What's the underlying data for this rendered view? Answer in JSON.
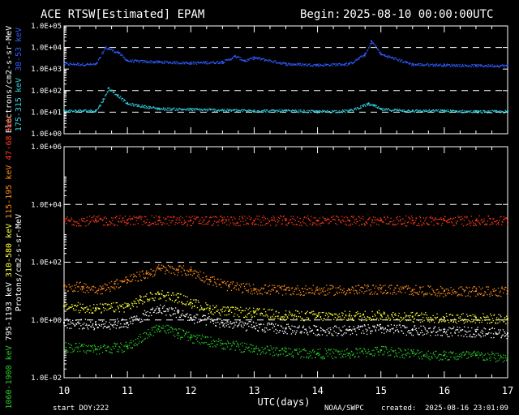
{
  "header": {
    "title": "ACE RTSW[Estimated] EPAM",
    "begin_label": "Begin:",
    "begin_value": "2025-08-10 00:00:00UTC"
  },
  "footer": {
    "start_doy_label": "start DOY:",
    "start_doy_value": "222",
    "source": "NOAA/SWPC",
    "created_label": "created:",
    "created_value": "2025-08-16 23:01:09"
  },
  "colors": {
    "background": "#000000",
    "axes": "#ffffff",
    "grid": "#ffffff",
    "electrons_38_53": "#2f5cff",
    "electrons_175_315": "#34d0e0",
    "protons_47_68": "#ff3a1a",
    "protons_115_195": "#ff8c1a",
    "protons_310_580": "#ffff33",
    "protons_795_1193": "#ffffff",
    "protons_1060_1900": "#28c828"
  },
  "chart_data": [
    {
      "type": "scatter",
      "panel": "electrons",
      "ylabel_parts": [
        {
          "text": "Electrons/cm2-s-sr-MeV",
          "color": "#ffffff"
        },
        {
          "text": "175-315 keV",
          "color": "#34d0e0"
        },
        {
          "text": "38-53 keV",
          "color": "#2f5cff"
        }
      ],
      "yscale": "log",
      "ylim": [
        1,
        100000
      ],
      "yticks": [
        "1.0E+00",
        "1.0E+01",
        "1.0E+02",
        "1.0E+03",
        "1.0E+04",
        "1.0E+05"
      ],
      "grid_dashed_at": [
        10000,
        100,
        10
      ],
      "xlim": [
        10,
        17
      ],
      "series": [
        {
          "name": "38-53 keV",
          "color": "#2f5cff",
          "x": [
            10.0,
            10.5,
            10.65,
            10.7,
            10.85,
            11.0,
            11.5,
            12.0,
            12.5,
            12.7,
            12.85,
            13.0,
            13.5,
            14.0,
            14.5,
            14.75,
            14.85,
            15.0,
            15.5,
            16.0,
            16.5,
            17.0
          ],
          "y": [
            1800,
            1700,
            10000,
            9000,
            6000,
            2500,
            2200,
            2000,
            2200,
            4000,
            2500,
            3500,
            1800,
            1600,
            1800,
            5000,
            20000,
            5000,
            1700,
            1600,
            1500,
            1500
          ]
        },
        {
          "name": "175-315 keV",
          "color": "#34d0e0",
          "x": [
            10.0,
            10.5,
            10.62,
            10.7,
            10.85,
            11.0,
            11.5,
            12.0,
            12.5,
            13.0,
            13.5,
            14.0,
            14.5,
            14.8,
            14.9,
            15.0,
            15.5,
            16.0,
            16.5,
            17.0
          ],
          "y": [
            12,
            12,
            40,
            130,
            60,
            25,
            15,
            14,
            13,
            12,
            12,
            11,
            12,
            25,
            20,
            14,
            12,
            12,
            11,
            11
          ]
        }
      ]
    },
    {
      "type": "scatter",
      "panel": "protons",
      "ylabel_parts": [
        {
          "text": "Protons/cm2-s-sr-MeV",
          "color": "#ffffff"
        },
        {
          "text": "1060-1900 keV",
          "color": "#28c828"
        },
        {
          "text": "795-1193 keV",
          "color": "#ffffff"
        },
        {
          "text": "310-580 keV",
          "color": "#ffff33"
        },
        {
          "text": "115-195 keV",
          "color": "#ff8c1a"
        },
        {
          "text": "47-68 keV",
          "color": "#ff3a1a"
        }
      ],
      "yscale": "log",
      "ylim": [
        0.01,
        1000000
      ],
      "yticks": [
        "1.0E-02",
        "1.0E+00",
        "1.0E+02",
        "1.0E+04",
        "1.0E+06"
      ],
      "grid_dashed_at": [
        10000,
        100,
        1
      ],
      "xlim": [
        10,
        17
      ],
      "xticks": [
        "10",
        "11",
        "12",
        "13",
        "14",
        "15",
        "16",
        "17"
      ],
      "xlabel": "UTC(days)",
      "series": [
        {
          "name": "47-68 keV",
          "color": "#ff3a1a",
          "x": [
            10.0,
            10.5,
            11.0,
            11.5,
            12.0,
            12.5,
            13.0,
            13.5,
            14.0,
            14.5,
            15.0,
            15.5,
            16.0,
            16.5,
            17.0
          ],
          "y": [
            2800,
            2800,
            2900,
            2800,
            2800,
            2800,
            2800,
            2800,
            2800,
            2800,
            2800,
            2800,
            2800,
            2800,
            2800
          ]
        },
        {
          "name": "115-195 keV",
          "color": "#ff8c1a",
          "x": [
            10.0,
            10.3,
            10.6,
            10.8,
            11.0,
            11.3,
            11.5,
            11.8,
            12.0,
            12.3,
            12.6,
            13.0,
            13.5,
            14.0,
            14.5,
            15.0,
            15.5,
            16.0,
            16.5,
            17.0
          ],
          "y": [
            15,
            14,
            12,
            18,
            25,
            40,
            60,
            55,
            50,
            25,
            15,
            12,
            11,
            11,
            11,
            12,
            11,
            10,
            10,
            10
          ]
        },
        {
          "name": "310-580 keV",
          "color": "#ffff33",
          "x": [
            10.0,
            10.5,
            11.0,
            11.2,
            11.5,
            11.8,
            12.0,
            12.3,
            12.6,
            13.0,
            13.5,
            14.0,
            14.5,
            15.0,
            15.5,
            16.0,
            16.5,
            17.0
          ],
          "y": [
            3,
            2.5,
            3,
            5,
            8,
            6,
            4,
            2.5,
            2,
            1.8,
            1.5,
            1.4,
            1.4,
            1.5,
            1.3,
            1.2,
            1.2,
            1.1
          ]
        },
        {
          "name": "795-1193 keV",
          "color": "#ffffff",
          "x": [
            10.0,
            10.5,
            11.0,
            11.5,
            11.8,
            12.0,
            12.5,
            13.0,
            13.5,
            14.0,
            14.5,
            15.0,
            15.5,
            16.0,
            16.5,
            17.0
          ],
          "y": [
            0.8,
            0.7,
            0.8,
            2.5,
            1.8,
            1.2,
            0.8,
            0.6,
            0.5,
            0.45,
            0.45,
            0.5,
            0.45,
            0.4,
            0.4,
            0.35
          ]
        },
        {
          "name": "1060-1900 keV",
          "color": "#28c828",
          "x": [
            10.0,
            10.5,
            11.0,
            11.5,
            11.8,
            12.0,
            12.5,
            13.0,
            13.5,
            14.0,
            14.5,
            15.0,
            15.5,
            16.0,
            16.5,
            17.0
          ],
          "y": [
            0.12,
            0.1,
            0.12,
            0.6,
            0.35,
            0.25,
            0.15,
            0.1,
            0.08,
            0.07,
            0.07,
            0.09,
            0.07,
            0.06,
            0.06,
            0.05
          ]
        }
      ]
    }
  ]
}
